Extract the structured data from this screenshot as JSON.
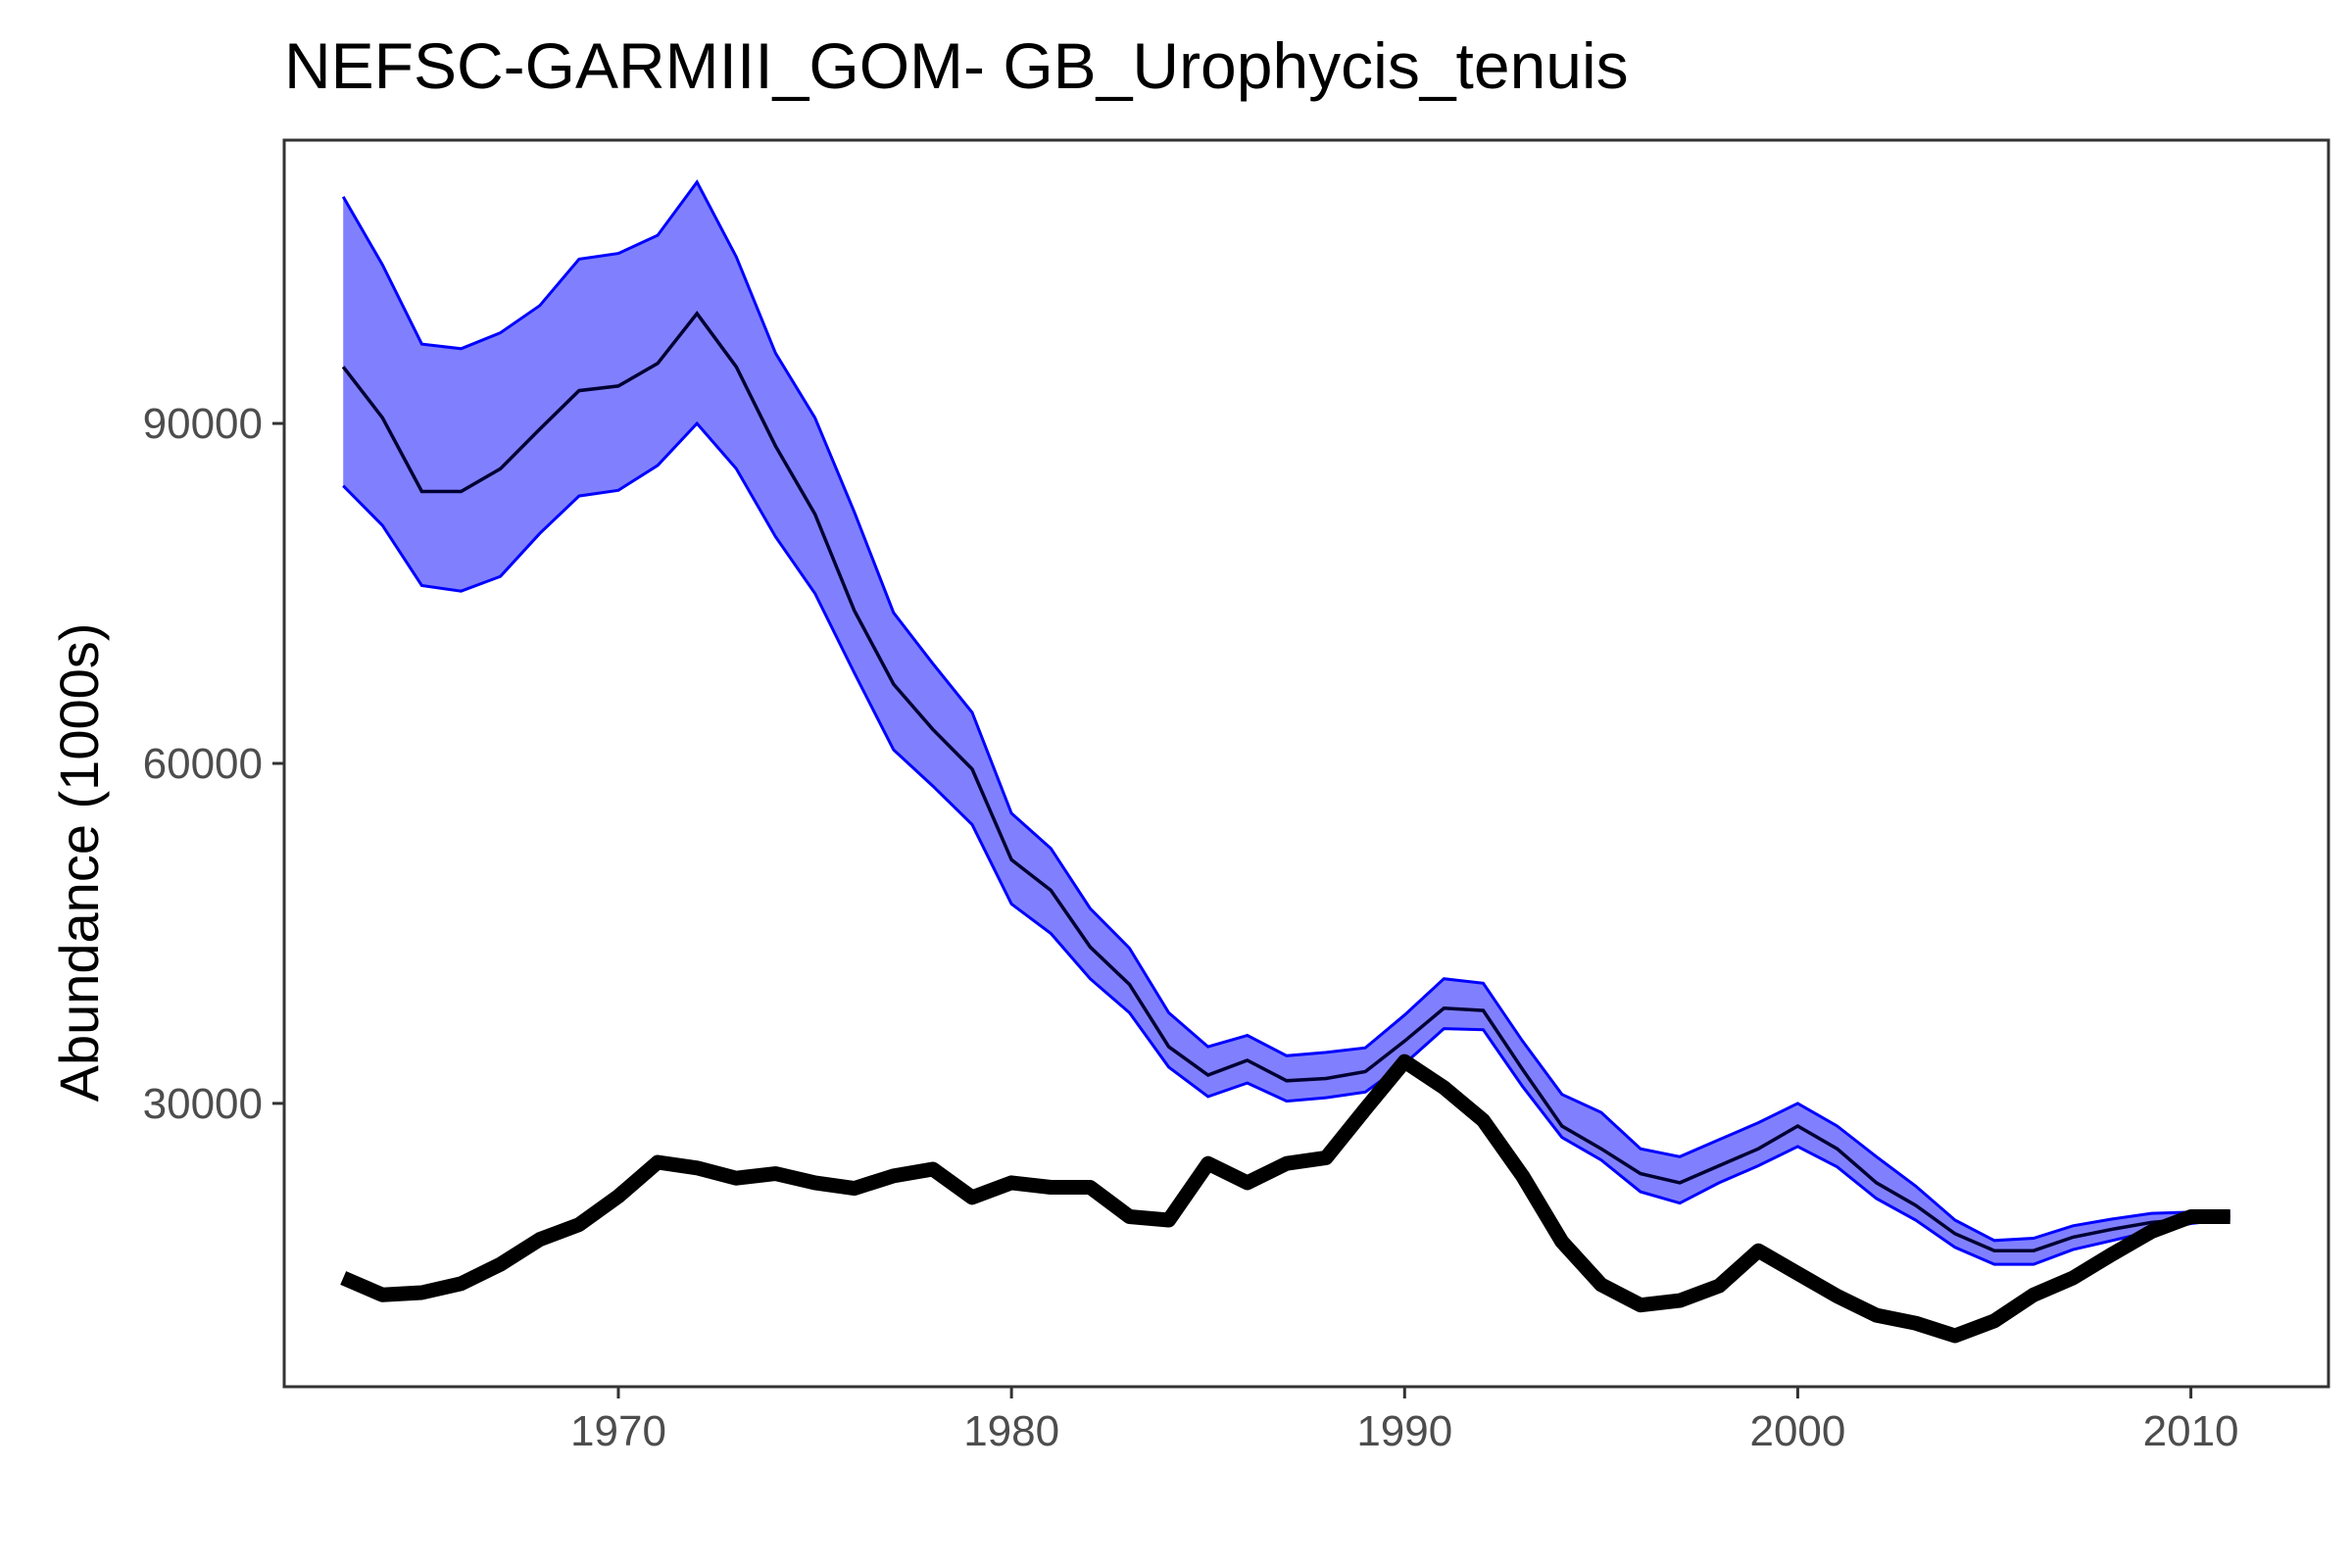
{
  "chart_data": {
    "type": "line",
    "title": "NEFSC-GARMIII_GOM- GB_Urophycis_tenuis",
    "xlabel": "",
    "ylabel": "Abundance (1000s)",
    "xlim": [
      1961.5,
      2013.5
    ],
    "ylim": [
      5000,
      115000
    ],
    "x_ticks": [
      1970,
      1980,
      1990,
      2000,
      2010
    ],
    "y_ticks": [
      30000,
      60000,
      90000
    ],
    "grid": false,
    "legend": "none",
    "colors": {
      "band_fill": "#8080ff",
      "band_edge": "#0000ff",
      "median": "#000033",
      "observed": "#000000"
    },
    "series": [
      {
        "role": "model-median",
        "x": [
          1963,
          1964,
          1965,
          1966,
          1967,
          1968,
          1969,
          1970,
          1971,
          1972,
          1973,
          1974,
          1975,
          1976,
          1977,
          1978,
          1979,
          1980,
          1981,
          1982,
          1983,
          1984,
          1985,
          1986,
          1987,
          1988,
          1989,
          1990,
          1991,
          1992,
          1993,
          1994,
          1995,
          1996,
          1997,
          1998,
          1999,
          2000,
          2001,
          2002,
          2003,
          2004,
          2005,
          2006,
          2007,
          2008,
          2009,
          2010,
          2011
        ],
        "values": [
          95000,
          90500,
          84000,
          84000,
          86000,
          89500,
          92900,
          93300,
          95300,
          99700,
          95000,
          88000,
          82000,
          73500,
          67000,
          63000,
          59500,
          51500,
          48800,
          43800,
          40500,
          35000,
          32500,
          33800,
          32000,
          32200,
          32800,
          35500,
          38400,
          38200,
          33000,
          28000,
          26000,
          23800,
          23000,
          24500,
          26000,
          28000,
          26000,
          23000,
          21000,
          18500,
          17000,
          17000,
          18200,
          18900,
          19500,
          19800,
          20100
        ]
      },
      {
        "role": "band-lower",
        "x": [
          1963,
          1964,
          1965,
          1966,
          1967,
          1968,
          1969,
          1970,
          1971,
          1972,
          1973,
          1974,
          1975,
          1976,
          1977,
          1978,
          1979,
          1980,
          1981,
          1982,
          1983,
          1984,
          1985,
          1986,
          1987,
          1988,
          1989,
          1990,
          1991,
          1992,
          1993,
          1994,
          1995,
          1996,
          1997,
          1998,
          1999,
          2000,
          2001,
          2002,
          2003,
          2004,
          2005,
          2006,
          2007,
          2008,
          2009,
          2010,
          2011
        ],
        "values": [
          84500,
          81000,
          75700,
          75200,
          76500,
          80300,
          83600,
          84100,
          86300,
          90000,
          86000,
          80000,
          75000,
          68000,
          61200,
          58000,
          54600,
          47600,
          45000,
          41000,
          38000,
          33200,
          30600,
          31800,
          30200,
          30500,
          31000,
          33500,
          36600,
          36500,
          31500,
          27000,
          25000,
          22200,
          21200,
          23000,
          24500,
          26200,
          24400,
          21600,
          19700,
          17300,
          15800,
          15800,
          17100,
          17900,
          18700,
          19400,
          19800
        ]
      },
      {
        "role": "band-upper",
        "x": [
          1963,
          1964,
          1965,
          1966,
          1967,
          1968,
          1969,
          1970,
          1971,
          1972,
          1973,
          1974,
          1975,
          1976,
          1977,
          1978,
          1979,
          1980,
          1981,
          1982,
          1983,
          1984,
          1985,
          1986,
          1987,
          1988,
          1989,
          1990,
          1991,
          1992,
          1993,
          1994,
          1995,
          1996,
          1997,
          1998,
          1999,
          2000,
          2001,
          2002,
          2003,
          2004,
          2005,
          2006,
          2007,
          2008,
          2009,
          2010,
          2011
        ],
        "values": [
          110000,
          104000,
          97000,
          96600,
          98000,
          100400,
          104500,
          105000,
          106600,
          111300,
          104700,
          96200,
          90500,
          82200,
          73300,
          68800,
          64500,
          55600,
          52500,
          47200,
          43700,
          38000,
          35000,
          36000,
          34200,
          34500,
          34900,
          37800,
          41000,
          40600,
          35500,
          30800,
          29200,
          26000,
          25300,
          26800,
          28300,
          30000,
          28000,
          25300,
          22700,
          19700,
          17900,
          18100,
          19200,
          19800,
          20300,
          20400,
          20400
        ]
      },
      {
        "role": "observed",
        "x": [
          1963,
          1964,
          1965,
          1966,
          1967,
          1968,
          1969,
          1970,
          1971,
          1972,
          1973,
          1974,
          1975,
          1976,
          1977,
          1978,
          1979,
          1980,
          1981,
          1982,
          1983,
          1984,
          1985,
          1986,
          1987,
          1988,
          1989,
          1990,
          1991,
          1992,
          1993,
          1994,
          1995,
          1996,
          1997,
          1998,
          1999,
          2000,
          2001,
          2002,
          2003,
          2004,
          2005,
          2006,
          2007,
          2008,
          2009,
          2010,
          2011
        ],
        "values": [
          14600,
          13100,
          13300,
          14100,
          15800,
          18000,
          19300,
          21800,
          24800,
          24300,
          23400,
          23800,
          23000,
          22500,
          23600,
          24200,
          21700,
          23000,
          22600,
          22600,
          20000,
          19700,
          24700,
          23000,
          24700,
          25200,
          29500,
          33700,
          31400,
          28500,
          23600,
          17800,
          14000,
          12200,
          12600,
          13900,
          17000,
          15000,
          13000,
          11300,
          10600,
          9500,
          10800,
          13100,
          14600,
          16700,
          18700,
          20000,
          20000
        ]
      }
    ]
  }
}
